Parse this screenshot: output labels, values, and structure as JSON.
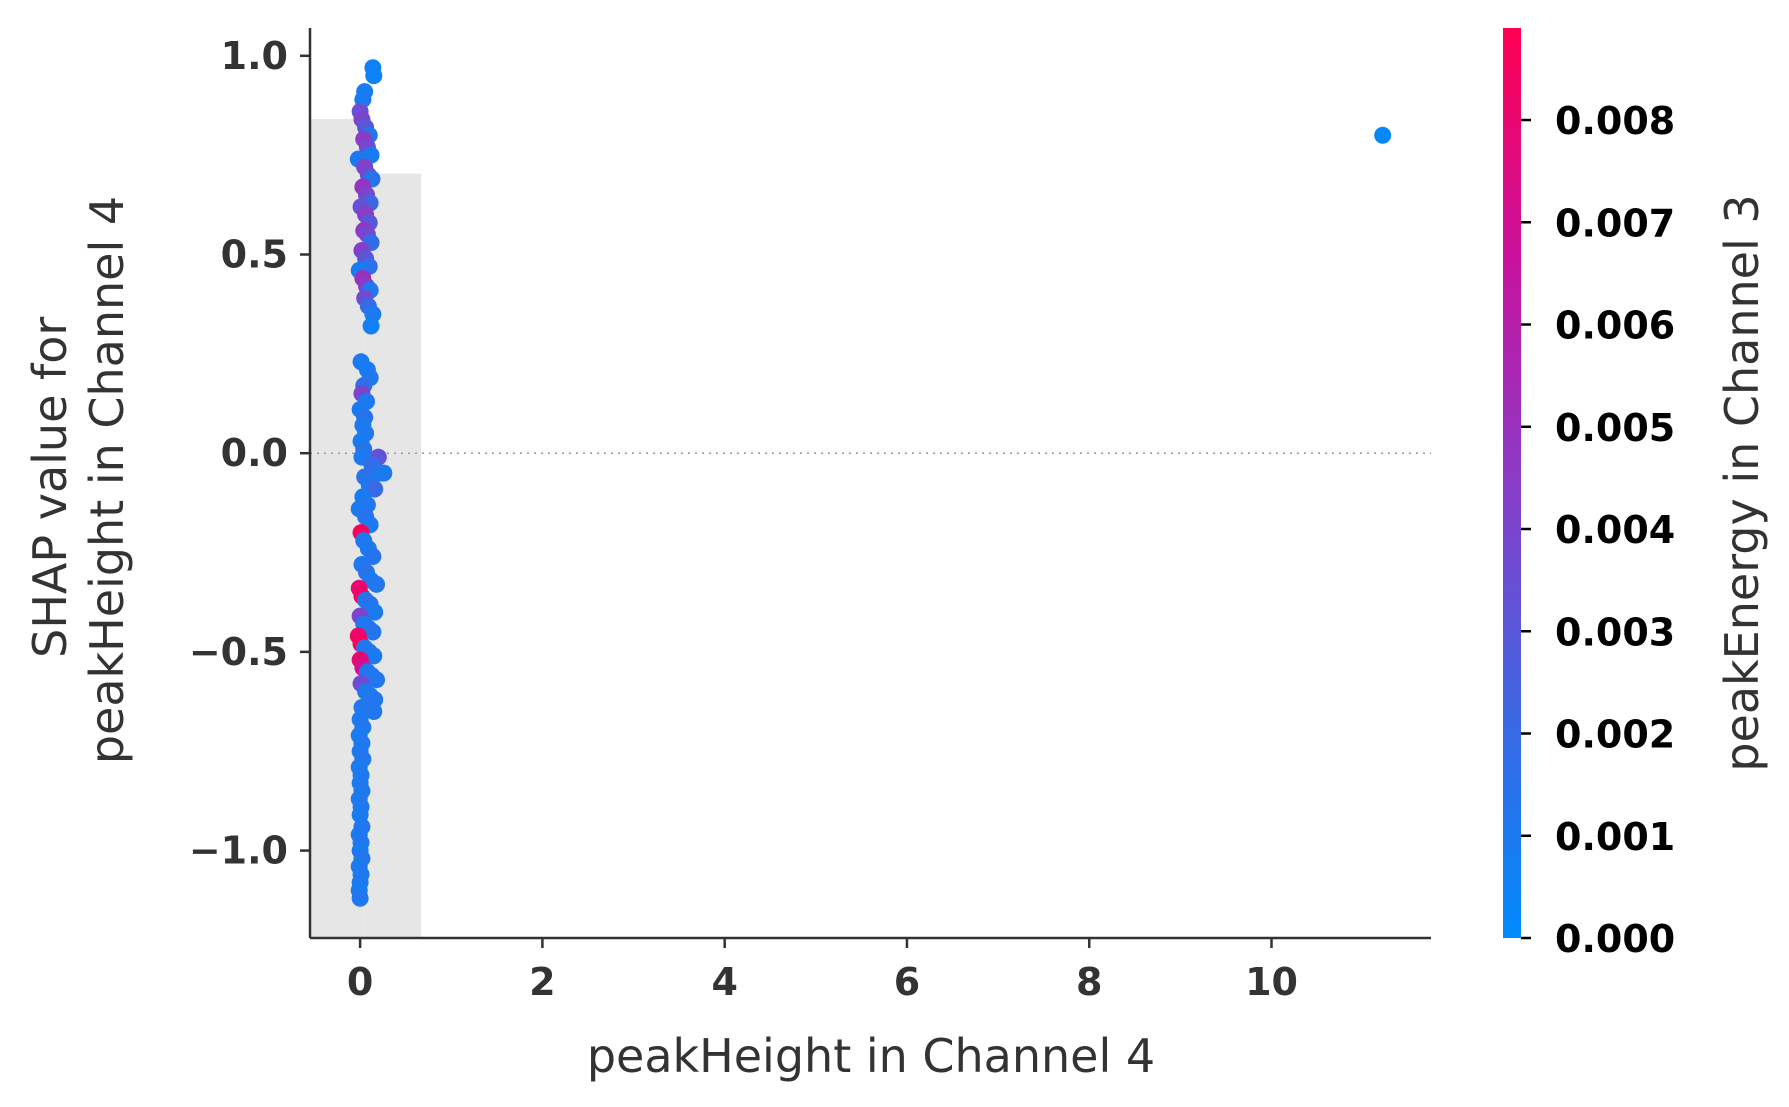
{
  "chart_data": {
    "type": "scatter",
    "title": "",
    "xlabel": "peakHeight in Channel 4",
    "ylabel_lines": [
      "SHAP value for",
      "peakHeight in Channel 4"
    ],
    "xlim": [
      -0.55,
      11.75
    ],
    "ylim": [
      -1.22,
      1.07
    ],
    "x_ticks": [
      0,
      2,
      4,
      6,
      8,
      10
    ],
    "y_ticks": [
      {
        "value": 1.0,
        "label": "1.0"
      },
      {
        "value": 0.5,
        "label": "0.5"
      },
      {
        "value": 0.0,
        "label": "0.0"
      },
      {
        "value": -0.5,
        "label": "−0.5"
      },
      {
        "value": -1.0,
        "label": "−1.0"
      }
    ],
    "zero_line": true,
    "grid": false,
    "histogram_bars": [
      {
        "x0": -0.55,
        "x1": 0.05,
        "height": 0.9
      },
      {
        "x0": 0.05,
        "x1": 0.67,
        "height": 0.84
      }
    ],
    "colorbar": {
      "label": "peakEnergy in Channel 3",
      "min": 0.0,
      "max": 0.0089,
      "colors": [
        "#008afb",
        "#3e66e2",
        "#8a3cc8",
        "#c9119d",
        "#ff0052"
      ],
      "ticks": [
        {
          "value": 0.0,
          "label": "0.000"
        },
        {
          "value": 0.001,
          "label": "0.001"
        },
        {
          "value": 0.002,
          "label": "0.002"
        },
        {
          "value": 0.003,
          "label": "0.003"
        },
        {
          "value": 0.004,
          "label": "0.004"
        },
        {
          "value": 0.005,
          "label": "0.005"
        },
        {
          "value": 0.006,
          "label": "0.006"
        },
        {
          "value": 0.007,
          "label": "0.007"
        },
        {
          "value": 0.008,
          "label": "0.008"
        }
      ]
    },
    "points": [
      [
        11.22,
        0.8,
        0.0002
      ],
      [
        0.14,
        0.97,
        0.0006
      ],
      [
        0.15,
        0.95,
        0.0005
      ],
      [
        0.05,
        0.91,
        0.0008
      ],
      [
        0.03,
        0.89,
        0.0009
      ],
      [
        0.0,
        0.86,
        0.0035
      ],
      [
        0.02,
        0.84,
        0.004
      ],
      [
        0.06,
        0.82,
        0.003
      ],
      [
        0.1,
        0.8,
        0.0012
      ],
      [
        0.04,
        0.79,
        0.0045
      ],
      [
        0.08,
        0.77,
        0.0038
      ],
      [
        0.12,
        0.75,
        0.0009
      ],
      [
        -0.02,
        0.74,
        0.001
      ],
      [
        0.05,
        0.72,
        0.0042
      ],
      [
        0.09,
        0.7,
        0.0036
      ],
      [
        0.13,
        0.69,
        0.0014
      ],
      [
        0.03,
        0.67,
        0.0048
      ],
      [
        0.07,
        0.65,
        0.004
      ],
      [
        0.11,
        0.63,
        0.0022
      ],
      [
        0.01,
        0.62,
        0.0034
      ],
      [
        0.06,
        0.6,
        0.0044
      ],
      [
        0.1,
        0.58,
        0.003
      ],
      [
        0.04,
        0.56,
        0.0046
      ],
      [
        0.08,
        0.55,
        0.0038
      ],
      [
        0.12,
        0.53,
        0.0018
      ],
      [
        0.02,
        0.51,
        0.0042
      ],
      [
        0.06,
        0.49,
        0.0032
      ],
      [
        0.1,
        0.47,
        0.0016
      ],
      [
        -0.01,
        0.46,
        0.0008
      ],
      [
        0.03,
        0.44,
        0.005
      ],
      [
        0.07,
        0.42,
        0.0044
      ],
      [
        0.11,
        0.41,
        0.0012
      ],
      [
        0.05,
        0.39,
        0.0036
      ],
      [
        0.09,
        0.37,
        0.002
      ],
      [
        0.14,
        0.35,
        0.001
      ],
      [
        0.12,
        0.32,
        0.0006
      ],
      [
        0.01,
        0.23,
        0.001
      ],
      [
        0.08,
        0.21,
        0.0008
      ],
      [
        0.11,
        0.19,
        0.0012
      ],
      [
        0.04,
        0.17,
        0.0016
      ],
      [
        0.02,
        0.15,
        0.004
      ],
      [
        0.07,
        0.13,
        0.0011
      ],
      [
        0.0,
        0.11,
        0.0009
      ],
      [
        0.05,
        0.09,
        0.0014
      ],
      [
        0.03,
        0.07,
        0.001
      ],
      [
        0.06,
        0.05,
        0.0012
      ],
      [
        0.01,
        0.03,
        0.0008
      ],
      [
        0.04,
        0.01,
        0.0013
      ],
      [
        0.02,
        -0.01,
        0.001
      ],
      [
        0.2,
        -0.01,
        0.0032
      ],
      [
        0.13,
        -0.03,
        0.0018
      ],
      [
        0.22,
        -0.05,
        0.0012
      ],
      [
        0.26,
        -0.05,
        0.001
      ],
      [
        0.05,
        -0.06,
        0.0015
      ],
      [
        0.1,
        -0.08,
        0.0011
      ],
      [
        0.16,
        -0.09,
        0.002
      ],
      [
        0.03,
        -0.11,
        0.0009
      ],
      [
        0.08,
        -0.13,
        0.0012
      ],
      [
        -0.01,
        -0.14,
        0.001
      ],
      [
        0.06,
        -0.16,
        0.0014
      ],
      [
        0.11,
        -0.18,
        0.001
      ],
      [
        0.01,
        -0.2,
        0.0086
      ],
      [
        0.04,
        -0.22,
        0.0012
      ],
      [
        0.09,
        -0.24,
        0.001
      ],
      [
        0.14,
        -0.26,
        0.0013
      ],
      [
        0.02,
        -0.28,
        0.0011
      ],
      [
        0.07,
        -0.3,
        0.0015
      ],
      [
        0.12,
        -0.32,
        0.0009
      ],
      [
        0.18,
        -0.33,
        0.0012
      ],
      [
        -0.01,
        -0.34,
        0.008
      ],
      [
        0.02,
        -0.36,
        0.0083
      ],
      [
        0.06,
        -0.37,
        0.0012
      ],
      [
        0.11,
        -0.38,
        0.0014
      ],
      [
        0.16,
        -0.4,
        0.001
      ],
      [
        0.0,
        -0.41,
        0.004
      ],
      [
        0.04,
        -0.43,
        0.0012
      ],
      [
        0.09,
        -0.44,
        0.0011
      ],
      [
        0.14,
        -0.45,
        0.0013
      ],
      [
        -0.02,
        -0.46,
        0.0082
      ],
      [
        0.01,
        -0.48,
        0.0086
      ],
      [
        0.05,
        -0.49,
        0.0011
      ],
      [
        0.1,
        -0.5,
        0.0012
      ],
      [
        0.15,
        -0.51,
        0.001
      ],
      [
        0.0,
        -0.52,
        0.0078
      ],
      [
        0.03,
        -0.54,
        0.007
      ],
      [
        0.08,
        -0.55,
        0.0013
      ],
      [
        0.13,
        -0.56,
        0.0011
      ],
      [
        0.18,
        -0.57,
        0.0012
      ],
      [
        0.01,
        -0.58,
        0.0036
      ],
      [
        0.06,
        -0.6,
        0.0012
      ],
      [
        0.11,
        -0.61,
        0.001
      ],
      [
        0.16,
        -0.62,
        0.0012
      ],
      [
        0.02,
        -0.64,
        0.0011
      ],
      [
        0.15,
        -0.65,
        0.0012
      ],
      [
        0.0,
        -0.67,
        0.001
      ],
      [
        0.03,
        -0.69,
        0.0012
      ],
      [
        -0.01,
        -0.71,
        0.0009
      ],
      [
        0.02,
        -0.73,
        0.0011
      ],
      [
        0.0,
        -0.75,
        0.001
      ],
      [
        0.03,
        -0.77,
        0.0012
      ],
      [
        -0.01,
        -0.79,
        0.0009
      ],
      [
        0.01,
        -0.81,
        0.0011
      ],
      [
        0.0,
        -0.83,
        0.001
      ],
      [
        0.02,
        -0.85,
        0.0012
      ],
      [
        -0.01,
        -0.87,
        0.001
      ],
      [
        0.01,
        -0.89,
        0.0011
      ],
      [
        0.0,
        -0.91,
        0.0009
      ],
      [
        0.02,
        -0.94,
        0.0012
      ],
      [
        -0.01,
        -0.96,
        0.001
      ],
      [
        0.01,
        -0.98,
        0.0011
      ],
      [
        0.0,
        -1.0,
        0.0009
      ],
      [
        0.02,
        -1.02,
        0.0012
      ],
      [
        -0.01,
        -1.04,
        0.001
      ],
      [
        0.01,
        -1.06,
        0.0011
      ],
      [
        0.0,
        -1.08,
        0.001
      ],
      [
        -0.01,
        -1.1,
        0.0009
      ],
      [
        0.0,
        -1.12,
        0.0011
      ]
    ]
  }
}
